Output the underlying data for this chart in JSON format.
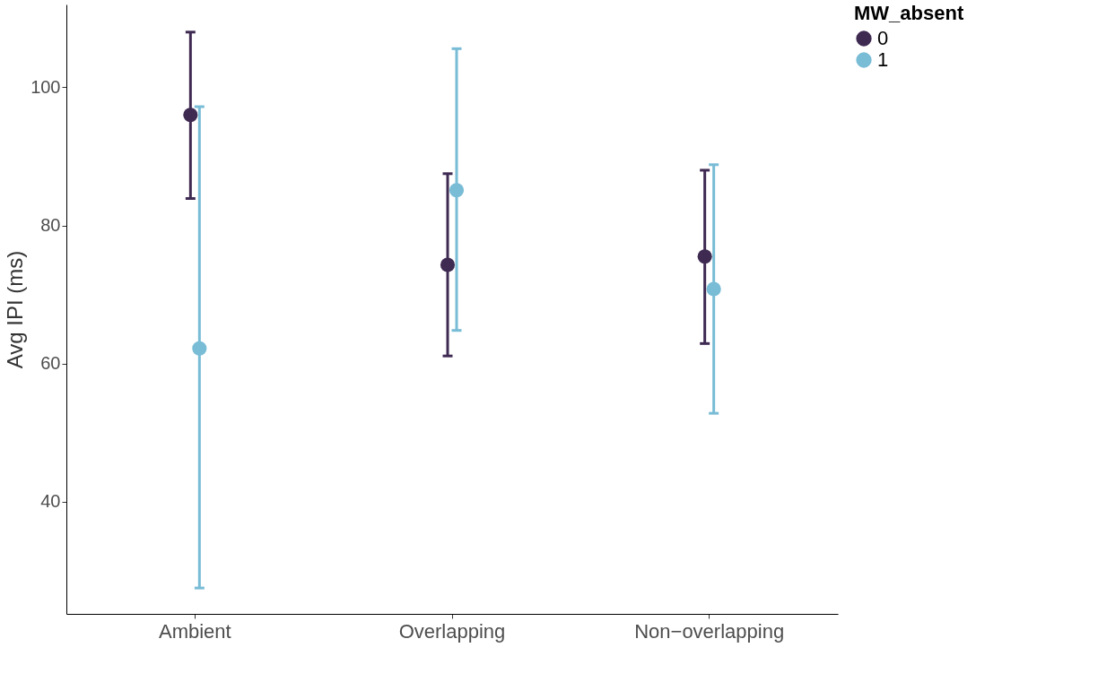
{
  "chart_data": {
    "type": "scatter",
    "ylabel": "Avg IPI (ms)",
    "legend_title": "MW_absent",
    "categories": [
      "Ambient",
      "Overlapping",
      "Non−overlapping"
    ],
    "series": [
      {
        "name": "0",
        "color": "#3f2a52",
        "values": [
          96,
          74.3,
          75.5
        ],
        "errors": [
          [
            83.9,
            108
          ],
          [
            61.1,
            87.5
          ],
          [
            62.9,
            88
          ]
        ]
      },
      {
        "name": "1",
        "color": "#79bcd6",
        "values": [
          62.2,
          85.1,
          70.8
        ],
        "errors": [
          [
            27.5,
            97.2
          ],
          [
            64.8,
            105.6
          ],
          [
            52.8,
            88.8
          ]
        ]
      }
    ],
    "ylim": [
      23.75,
      112
    ],
    "yticks": [
      40,
      60,
      80,
      100
    ],
    "grid": false,
    "legend": "right",
    "marker": "circle"
  }
}
